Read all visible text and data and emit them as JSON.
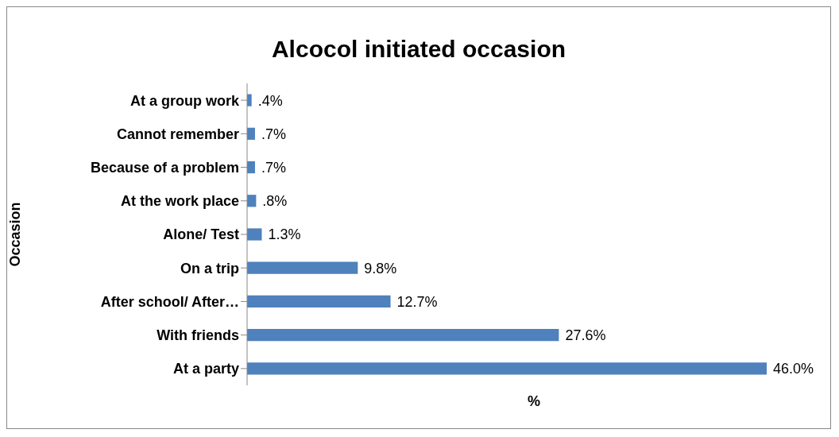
{
  "chart_data": {
    "type": "bar",
    "orientation": "horizontal",
    "title": "Alcocol initiated occasion",
    "xlabel": "%",
    "ylabel": "Occasion",
    "categories": [
      "At a group work",
      "Cannot remember",
      "Because of a problem",
      "At the work place",
      "Alone/ Test",
      "On a trip",
      "After school/ After…",
      "With friends",
      "At a party"
    ],
    "values": [
      0.4,
      0.7,
      0.7,
      0.8,
      1.3,
      9.8,
      12.7,
      27.6,
      46.0
    ],
    "value_labels": [
      ".4%",
      ".7%",
      ".7%",
      ".8%",
      "1.3%",
      "9.8%",
      "12.7%",
      "27.6%",
      "46.0%"
    ],
    "color": "#4f81bd"
  }
}
